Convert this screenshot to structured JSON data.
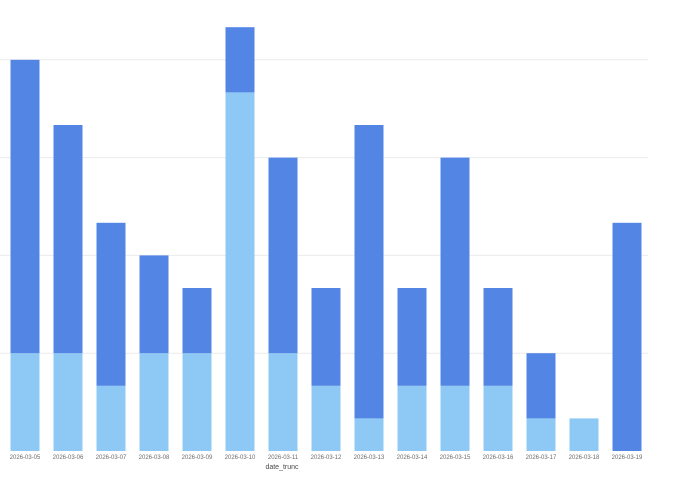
{
  "chart_data": {
    "type": "bar",
    "stacked": true,
    "xlabel": "date_trunc",
    "ylabel": "",
    "ylim": [
      0,
      13
    ],
    "grid": true,
    "categories": [
      "2026-03-05",
      "2026-03-06",
      "2026-03-07",
      "2026-03-08",
      "2026-03-09",
      "2026-03-10",
      "2026-03-11",
      "2026-03-12",
      "2026-03-13",
      "2026-03-14",
      "2026-03-15",
      "2026-03-16",
      "2026-03-17",
      "2026-03-18",
      "2026-03-19"
    ],
    "series": [
      {
        "color": "#8ec8f5",
        "values": [
          3,
          3,
          2,
          3,
          3,
          11,
          3,
          2,
          1,
          2,
          2,
          2,
          1,
          1,
          0
        ]
      },
      {
        "color": "#5386e4",
        "values": [
          9,
          7,
          5,
          3,
          2,
          2,
          6,
          3,
          9,
          3,
          7,
          3,
          2,
          0,
          7
        ]
      }
    ]
  }
}
